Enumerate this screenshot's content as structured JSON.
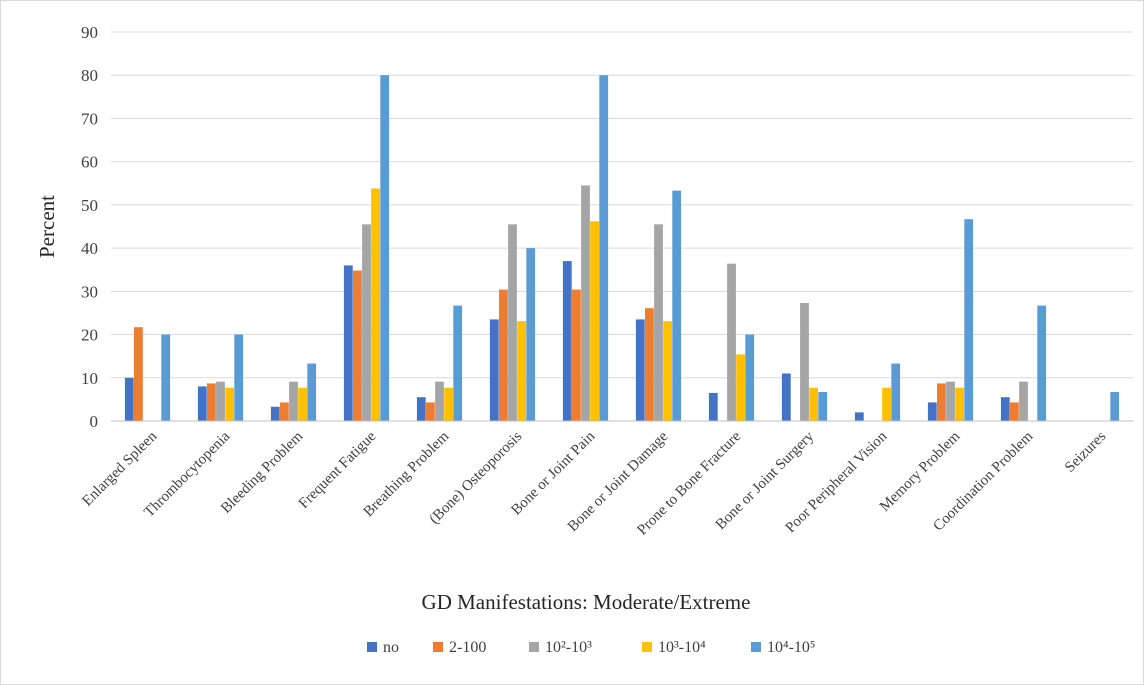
{
  "chart_data": {
    "type": "bar",
    "xlabel": "GD Manifestations: Moderate/Extreme",
    "ylabel": "Percent",
    "ylim": [
      0,
      90
    ],
    "yticks": [
      0,
      10,
      20,
      30,
      40,
      50,
      60,
      70,
      80,
      90
    ],
    "grid": true,
    "legend_position": "bottom",
    "categories": [
      "Enlarged Spleen",
      "Thrombocytopenia",
      "Bleeding Problem",
      "Frequent Fatigue",
      "Breathing Problem",
      "(Bone) Osteoporosis",
      "Bone or Joint Pain",
      "Bone or Joint Damage",
      "Prone to Bone Fracture",
      "Bone or Joint Surgery",
      "Poor Peripheral Vision",
      "Memory Problem",
      "Coordination Problem",
      "Seizures"
    ],
    "series": [
      {
        "name": "no",
        "color": "#4472C4",
        "values": [
          10,
          8,
          3.3,
          36,
          5.5,
          23.5,
          37,
          23.5,
          6.5,
          11,
          2,
          4.3,
          5.5,
          0
        ]
      },
      {
        "name": "2-100",
        "color": "#ED7D31",
        "values": [
          21.7,
          8.7,
          4.3,
          34.8,
          4.3,
          30.4,
          30.4,
          26.1,
          0,
          0,
          0,
          8.7,
          4.3,
          0
        ]
      },
      {
        "name": "10²-10³",
        "color": "#A5A5A5",
        "values": [
          0,
          9.1,
          9.1,
          45.5,
          9.1,
          45.5,
          54.5,
          45.5,
          36.4,
          27.3,
          0,
          9.1,
          9.1,
          0
        ]
      },
      {
        "name": "10³-10⁴",
        "color": "#FFC000",
        "values": [
          0,
          7.7,
          7.7,
          53.8,
          7.7,
          23.1,
          46.2,
          23.1,
          15.4,
          7.7,
          7.7,
          7.7,
          0,
          0
        ]
      },
      {
        "name": "10⁴-10⁵",
        "color": "#5B9BD5",
        "values": [
          20,
          20,
          13.3,
          80,
          26.7,
          40,
          80,
          53.3,
          20,
          6.7,
          13.3,
          46.7,
          26.7,
          6.7
        ]
      }
    ]
  }
}
